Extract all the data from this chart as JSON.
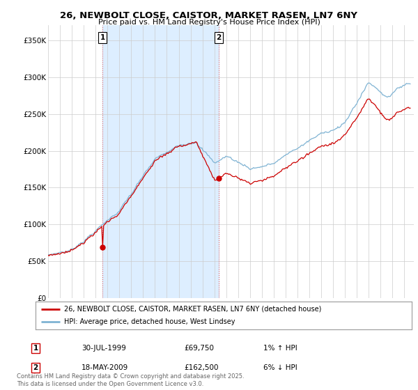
{
  "title": "26, NEWBOLT CLOSE, CAISTOR, MARKET RASEN, LN7 6NY",
  "subtitle": "Price paid vs. HM Land Registry's House Price Index (HPI)",
  "ylabel_ticks": [
    "£0",
    "£50K",
    "£100K",
    "£150K",
    "£200K",
    "£250K",
    "£300K",
    "£350K"
  ],
  "ytick_vals": [
    0,
    50000,
    100000,
    150000,
    200000,
    250000,
    300000,
    350000
  ],
  "ylim": [
    0,
    370000
  ],
  "xlim_start": 1995.0,
  "xlim_end": 2025.8,
  "purchase1_date": "30-JUL-1999",
  "purchase1_price": 69750,
  "purchase1_pct": "1%",
  "purchase1_dir": "↑",
  "purchase2_date": "18-MAY-2009",
  "purchase2_price": 162500,
  "purchase2_pct": "6%",
  "purchase2_dir": "↓",
  "legend_line1": "26, NEWBOLT CLOSE, CAISTOR, MARKET RASEN, LN7 6NY (detached house)",
  "legend_line2": "HPI: Average price, detached house, West Lindsey",
  "footer": "Contains HM Land Registry data © Crown copyright and database right 2025.\nThis data is licensed under the Open Government Licence v3.0.",
  "line_color_red": "#cc0000",
  "line_color_blue": "#7fb3d3",
  "shade_color": "#ddeeff",
  "background_color": "#ffffff",
  "grid_color": "#cccccc",
  "dot1_x": 1999.58,
  "dot1_y": 69750,
  "dot2_x": 2009.38,
  "dot2_y": 162500
}
